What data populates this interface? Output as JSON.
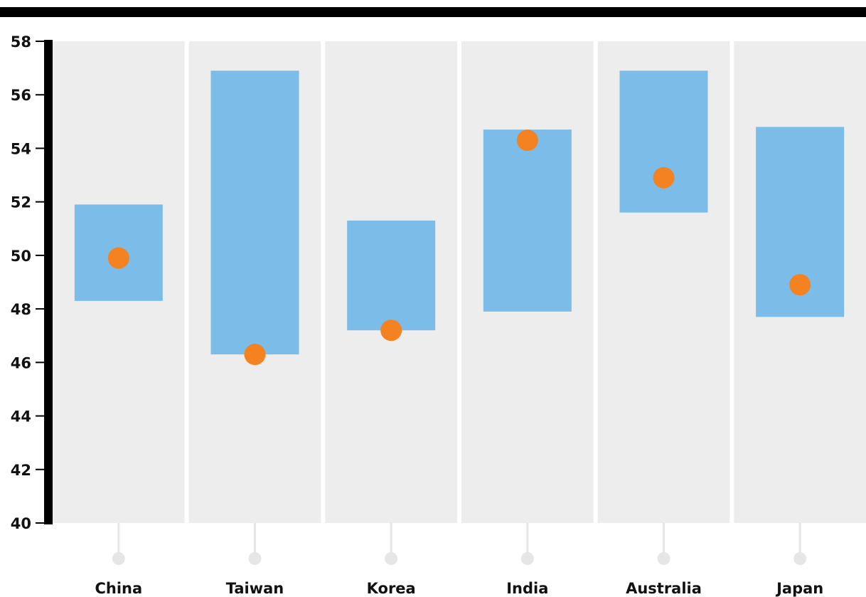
{
  "chart_data": {
    "type": "range_bar_with_point",
    "categories": [
      "China",
      "Taiwan",
      "Korea",
      "India",
      "Australia",
      "Japan"
    ],
    "series": [
      {
        "values": [
          [
            48.3,
            51.9
          ],
          [
            46.3,
            56.9
          ],
          [
            47.2,
            51.3
          ],
          [
            47.9,
            54.7
          ],
          [
            51.6,
            56.9
          ],
          [
            47.7,
            54.8
          ]
        ]
      },
      {
        "values": [
          49.9,
          46.3,
          47.2,
          54.3,
          52.9,
          48.9
        ]
      }
    ],
    "y_ticks": [
      "40",
      "42",
      "44",
      "46",
      "48",
      "50",
      "52",
      "54",
      "56",
      "58"
    ],
    "ylim": [
      40,
      58
    ],
    "grid": false,
    "colors": {
      "range_bar": "#7bbce8",
      "point": "#f58220",
      "panel_bg": "#ededed",
      "axis": "#000000",
      "connector": "#e6e6e6"
    }
  }
}
